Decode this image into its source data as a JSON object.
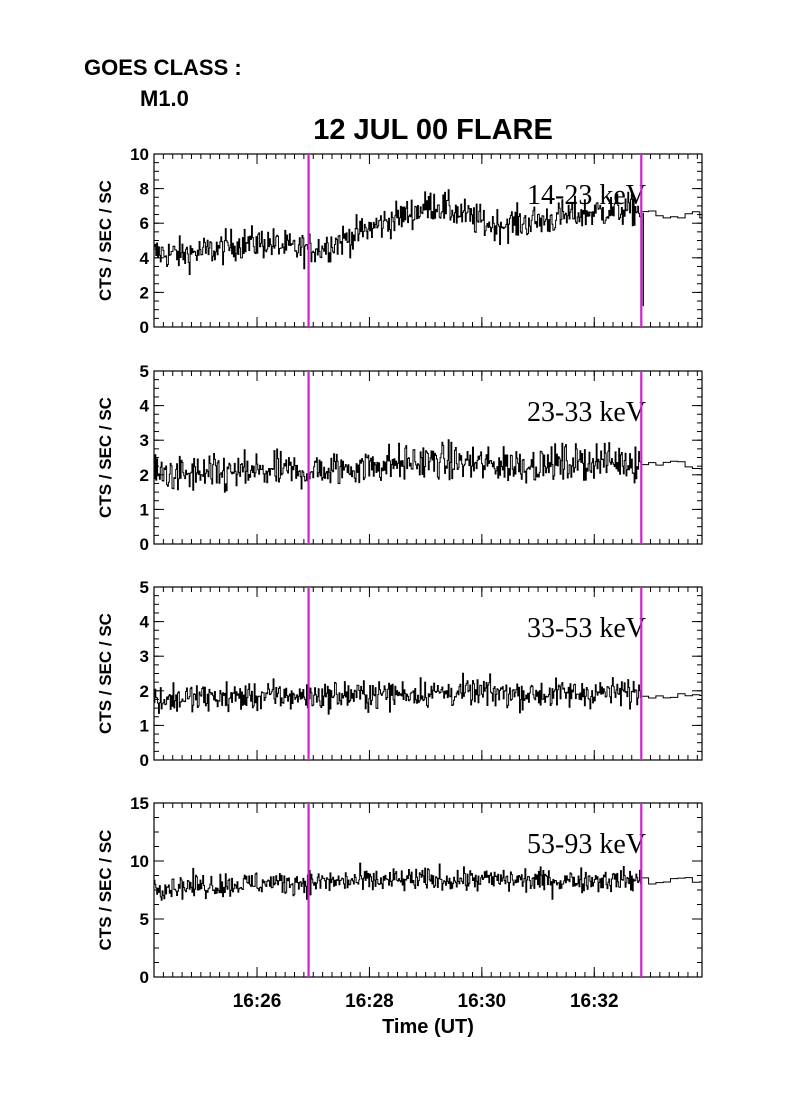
{
  "header": {
    "goes_class_label": "GOES CLASS :",
    "goes_class_value": "M1.0",
    "title": "12 JUL 00 FLARE"
  },
  "colors": {
    "marker": "#cc22cc",
    "line": "#000000"
  },
  "chart_data": [
    {
      "type": "line",
      "band_label": "14-23 keV",
      "ylabel": "CTS / SEC / SC",
      "ylim": [
        0,
        10
      ],
      "yticks": [
        0,
        2,
        4,
        6,
        8,
        10
      ],
      "x_range_minutes": [
        "16:24:10",
        "16:33:55"
      ],
      "series": [
        {
          "x_minutes": [
            0.0,
            0.5,
            1.0,
            1.5,
            2.0,
            2.5,
            3.0,
            3.5,
            4.0,
            4.5,
            5.0,
            5.5,
            6.0,
            6.5,
            7.0,
            7.5,
            8.0,
            8.5,
            9.0
          ],
          "values": [
            4.3,
            4.2,
            4.4,
            4.8,
            4.9,
            4.5,
            4.6,
            5.2,
            5.9,
            6.5,
            7.1,
            6.5,
            5.9,
            6.0,
            6.2,
            6.5,
            6.7,
            6.8,
            6.6
          ]
        }
      ],
      "after_end_level": 6.5
    },
    {
      "type": "line",
      "band_label": "23-33 keV",
      "ylabel": "CTS / SEC / SC",
      "ylim": [
        0,
        5
      ],
      "yticks": [
        0,
        1,
        2,
        3,
        4,
        5
      ],
      "series": [
        {
          "x_minutes": [
            0.0,
            1.0,
            2.0,
            3.0,
            4.0,
            5.0,
            6.0,
            7.0,
            8.0,
            9.0
          ],
          "values": [
            2.0,
            2.0,
            2.1,
            2.1,
            2.3,
            2.4,
            2.3,
            2.3,
            2.4,
            2.35
          ]
        }
      ],
      "after_end_level": 2.3
    },
    {
      "type": "line",
      "band_label": "33-53 keV",
      "ylabel": "CTS / SEC / SC",
      "ylim": [
        0,
        5
      ],
      "yticks": [
        0,
        1,
        2,
        3,
        4,
        5
      ],
      "series": [
        {
          "x_minutes": [
            0.0,
            1.0,
            2.0,
            3.0,
            4.0,
            5.0,
            6.0,
            7.0,
            8.0,
            9.0
          ],
          "values": [
            1.75,
            1.8,
            1.85,
            1.85,
            1.9,
            1.95,
            1.95,
            1.9,
            1.95,
            1.95
          ]
        }
      ],
      "after_end_level": 1.9
    },
    {
      "type": "line",
      "band_label": "53-93 keV",
      "ylabel": "CTS / SEC / SC",
      "ylim": [
        0,
        15
      ],
      "yticks": [
        0,
        5,
        10,
        15
      ],
      "series": [
        {
          "x_minutes": [
            0.0,
            1.0,
            2.0,
            3.0,
            4.0,
            5.0,
            6.0,
            7.0,
            8.0,
            9.0
          ],
          "values": [
            7.8,
            7.9,
            8.1,
            8.2,
            8.3,
            8.4,
            8.4,
            8.3,
            8.4,
            8.3
          ]
        }
      ],
      "after_end_level": 8.3
    }
  ],
  "x_axis": {
    "label": "Time (UT)",
    "tick_labels": [
      "16:26",
      "16:28",
      "16:30",
      "16:32"
    ],
    "tick_minutes": [
      1.833,
      3.833,
      5.833,
      7.833
    ],
    "range_minutes": [
      0,
      9.75
    ],
    "data_end_minute": 8.67,
    "markers_minutes": [
      2.75,
      8.67
    ]
  }
}
